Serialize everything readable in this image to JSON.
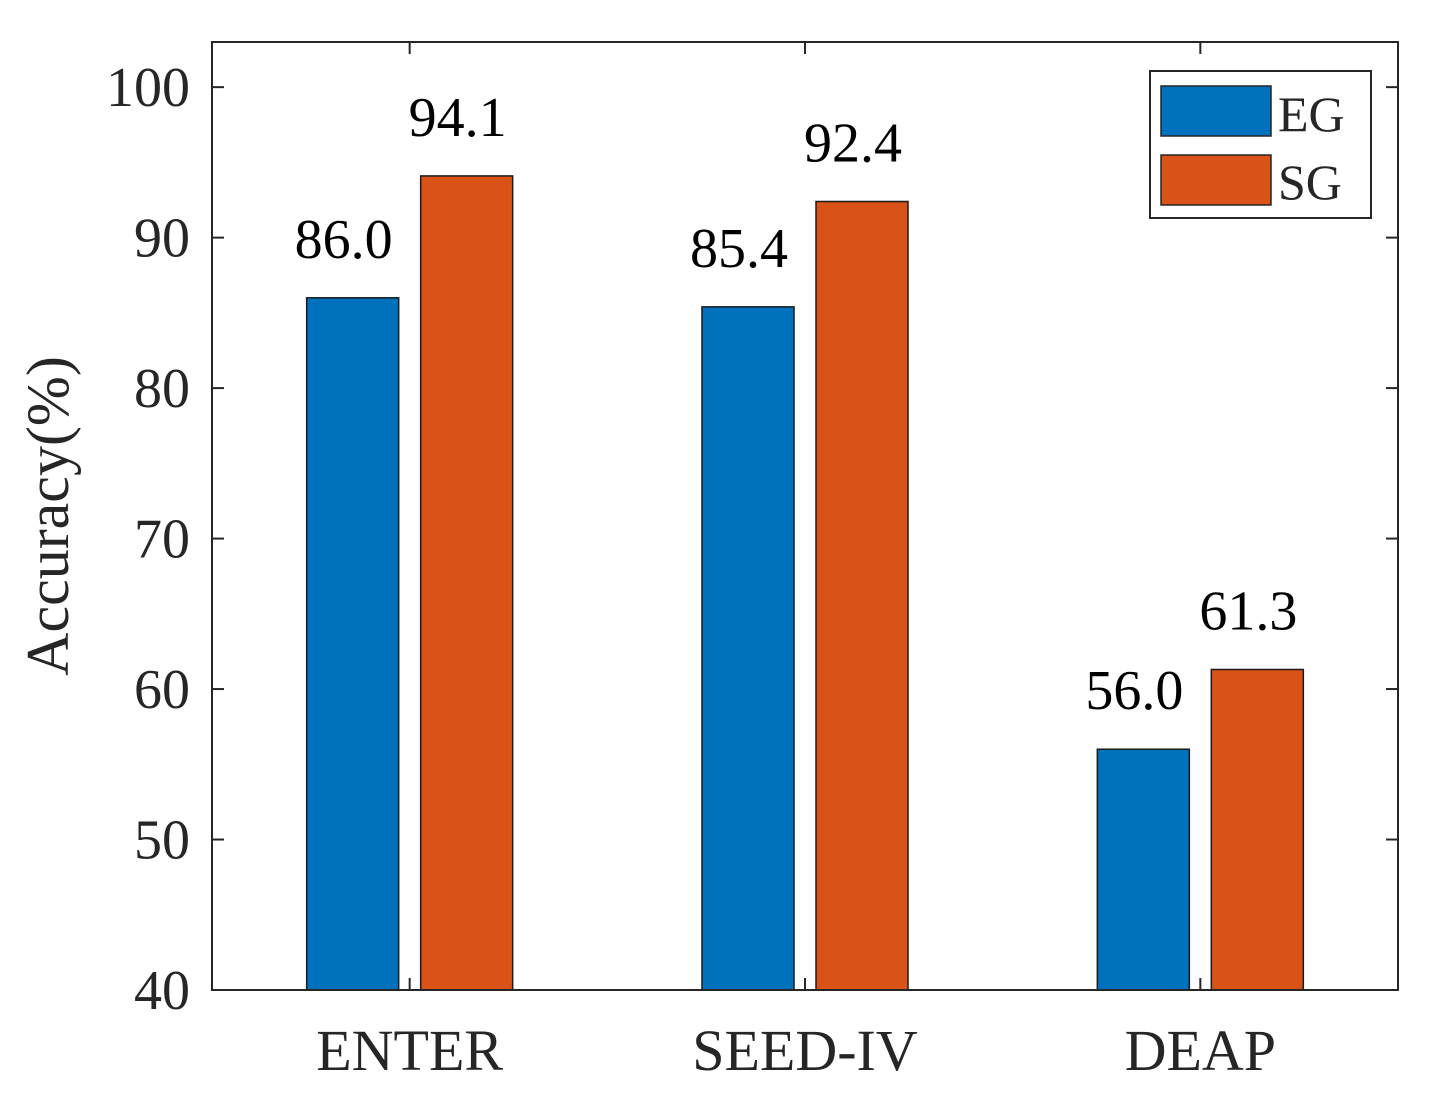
{
  "chart_data": {
    "type": "bar",
    "title": "",
    "xlabel": "",
    "ylabel": "Accuracy(%)",
    "ylim": [
      40,
      103
    ],
    "yticks": [
      40,
      50,
      60,
      70,
      80,
      90,
      100
    ],
    "grid": false,
    "legend_position": "top-right",
    "categories": [
      "ENTER",
      "SEED-IV",
      "DEAP"
    ],
    "series": [
      {
        "name": "EG",
        "color": "#0072BD",
        "values": [
          86.0,
          85.4,
          56.0
        ],
        "labels": [
          "86.0",
          "85.4",
          "56.0"
        ]
      },
      {
        "name": "SG",
        "color": "#D95319",
        "values": [
          94.1,
          92.4,
          61.3
        ],
        "labels": [
          "94.1",
          "92.4",
          "61.3"
        ]
      }
    ]
  }
}
